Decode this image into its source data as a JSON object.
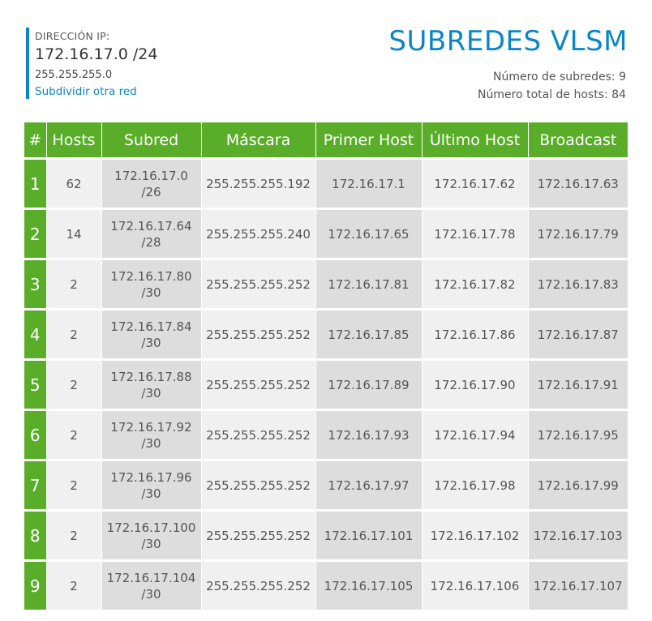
{
  "header": {
    "ip_label": "DIRECCIÓN IP:",
    "ip_value": "172.16.17.0 /24",
    "mask": "255.255.255.0",
    "link_label": "Subdividir otra red",
    "title": "SUBREDES VLSM",
    "subnet_count": "Número de subredes: 9",
    "host_total": "Número total de hosts: 84"
  },
  "colors": {
    "accent_blue": "#0a86c7",
    "header_green": "#5aad28",
    "cell_light": "#f0f0f0",
    "cell_dark": "#dddddd"
  },
  "table": {
    "columns": [
      "#",
      "Hosts",
      "Subred",
      "Máscara",
      "Primer Host",
      "Último Host",
      "Broadcast"
    ],
    "rows": [
      {
        "num": "1",
        "hosts": "62",
        "subnet": "172.16.17.0",
        "prefix": "/26",
        "mask": "255.255.255.192",
        "first": "172.16.17.1",
        "last": "172.16.17.62",
        "broadcast": "172.16.17.63"
      },
      {
        "num": "2",
        "hosts": "14",
        "subnet": "172.16.17.64",
        "prefix": "/28",
        "mask": "255.255.255.240",
        "first": "172.16.17.65",
        "last": "172.16.17.78",
        "broadcast": "172.16.17.79"
      },
      {
        "num": "3",
        "hosts": "2",
        "subnet": "172.16.17.80",
        "prefix": "/30",
        "mask": "255.255.255.252",
        "first": "172.16.17.81",
        "last": "172.16.17.82",
        "broadcast": "172.16.17.83"
      },
      {
        "num": "4",
        "hosts": "2",
        "subnet": "172.16.17.84",
        "prefix": "/30",
        "mask": "255.255.255.252",
        "first": "172.16.17.85",
        "last": "172.16.17.86",
        "broadcast": "172.16.17.87"
      },
      {
        "num": "5",
        "hosts": "2",
        "subnet": "172.16.17.88",
        "prefix": "/30",
        "mask": "255.255.255.252",
        "first": "172.16.17.89",
        "last": "172.16.17.90",
        "broadcast": "172.16.17.91"
      },
      {
        "num": "6",
        "hosts": "2",
        "subnet": "172.16.17.92",
        "prefix": "/30",
        "mask": "255.255.255.252",
        "first": "172.16.17.93",
        "last": "172.16.17.94",
        "broadcast": "172.16.17.95"
      },
      {
        "num": "7",
        "hosts": "2",
        "subnet": "172.16.17.96",
        "prefix": "/30",
        "mask": "255.255.255.252",
        "first": "172.16.17.97",
        "last": "172.16.17.98",
        "broadcast": "172.16.17.99"
      },
      {
        "num": "8",
        "hosts": "2",
        "subnet": "172.16.17.100",
        "prefix": "/30",
        "mask": "255.255.255.252",
        "first": "172.16.17.101",
        "last": "172.16.17.102",
        "broadcast": "172.16.17.103"
      },
      {
        "num": "9",
        "hosts": "2",
        "subnet": "172.16.17.104",
        "prefix": "/30",
        "mask": "255.255.255.252",
        "first": "172.16.17.105",
        "last": "172.16.17.106",
        "broadcast": "172.16.17.107"
      }
    ]
  }
}
